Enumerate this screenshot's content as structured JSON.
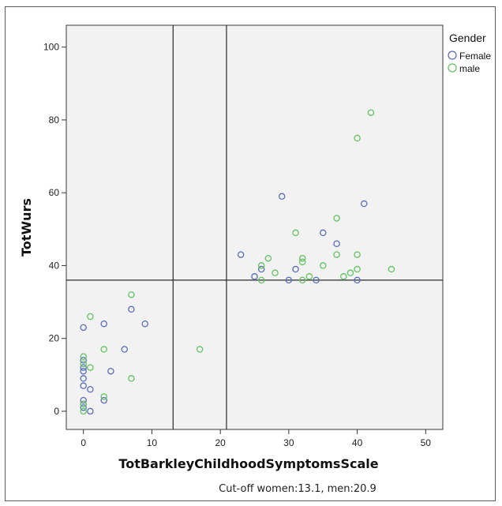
{
  "chart_data": {
    "type": "scatter",
    "xlabel": "TotBarkleyChildhoodSymptomsScale",
    "ylabel": "TotWurs",
    "xlim": [
      -2.5,
      52.5
    ],
    "ylim": [
      -5,
      106
    ],
    "x_ticks": [
      0,
      10,
      20,
      30,
      40,
      50
    ],
    "y_ticks": [
      0,
      20,
      40,
      60,
      80,
      100
    ],
    "grid": false,
    "legend": {
      "title": "Gender",
      "placement": "top-right, outside plot",
      "entries": [
        "Female",
        "male"
      ]
    },
    "reference_lines": {
      "vertical": [
        13.1,
        20.9
      ],
      "horizontal": [
        36
      ]
    },
    "caption": "Cut-off women:13.1, men:20.9",
    "colors": {
      "Female": "#5a6fb8",
      "male": "#63c262",
      "plot_background": "#f2f2f2",
      "reference_line": "#2a2a2a"
    },
    "series": [
      {
        "name": "Female",
        "marker": "open-circle",
        "x": [
          0,
          0,
          0,
          0,
          0,
          0,
          0,
          0,
          0,
          1,
          1,
          3,
          3,
          4,
          6,
          7,
          9,
          23,
          25,
          26,
          29,
          30,
          31,
          34,
          35,
          37,
          40,
          41
        ],
        "y": [
          23,
          14,
          12,
          11,
          9,
          7,
          3,
          2,
          1,
          6,
          0,
          24,
          3,
          11,
          17,
          28,
          24,
          43,
          37,
          39,
          59,
          36,
          39,
          36,
          49,
          46,
          36,
          57
        ]
      },
      {
        "name": "male",
        "marker": "open-circle",
        "x": [
          0,
          0,
          0,
          0,
          1,
          1,
          3,
          3,
          7,
          7,
          17,
          26,
          26,
          27,
          28,
          31,
          32,
          32,
          32,
          33,
          35,
          37,
          37,
          38,
          39,
          40,
          40,
          40,
          42,
          45
        ],
        "y": [
          15,
          13,
          2,
          0,
          26,
          12,
          17,
          4,
          32,
          9,
          17,
          40,
          36,
          42,
          38,
          49,
          42,
          41,
          36,
          37,
          40,
          53,
          43,
          37,
          38,
          75,
          43,
          39,
          82,
          39
        ]
      }
    ]
  }
}
